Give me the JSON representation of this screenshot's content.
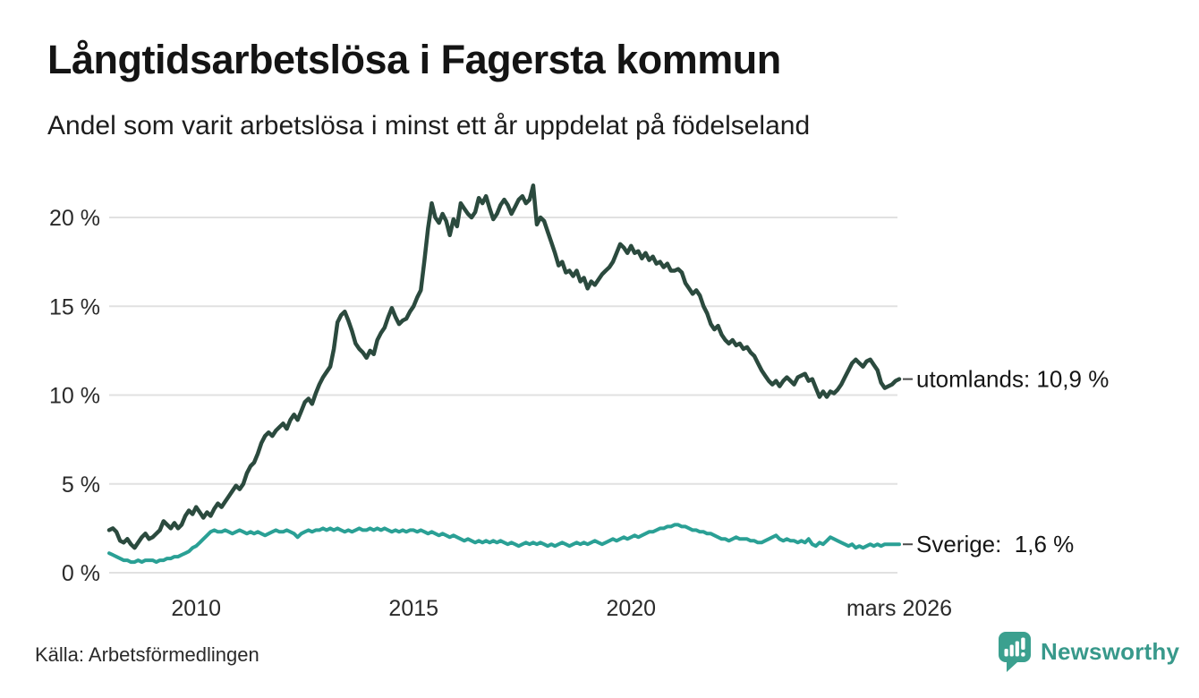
{
  "header": {
    "title": "Långtidsarbetslösa i Fagersta kommun",
    "subtitle": "Andel som varit arbetslösa i minst ett år uppdelat på födelseland"
  },
  "footer": {
    "source": "Källa: Arbetsförmedlingen",
    "brand": "Newsworthy"
  },
  "colors": {
    "utomlands_line": "#2b4a3e",
    "sverige_line": "#2aa095",
    "grid": "#e1e1e1",
    "axis_text": "#2a2a2a",
    "label_text": "#161616",
    "connector": "#4a4a4a",
    "brand_teal": "#3ba08f"
  },
  "chart_data": {
    "type": "line",
    "title": "Långtidsarbetslösa i Fagersta kommun",
    "subtitle": "Andel som varit arbetslösa i minst ett år uppdelat på födelseland",
    "unit": "%",
    "grid": true,
    "legend_position": "end-of-line-labels",
    "x_domain": [
      2008.0,
      2026.1667
    ],
    "x_start_year": 2008,
    "x_step_months": 1,
    "ylim": [
      0,
      22
    ],
    "y_ticks": [
      {
        "value": 0,
        "label": "0 %"
      },
      {
        "value": 5,
        "label": "5 %"
      },
      {
        "value": 10,
        "label": "10 %"
      },
      {
        "value": 15,
        "label": "15 %"
      },
      {
        "value": 20,
        "label": "20 %"
      }
    ],
    "x_ticks": [
      {
        "year": 2010,
        "label": "2010"
      },
      {
        "year": 2015,
        "label": "2015"
      },
      {
        "year": 2020,
        "label": "2020"
      },
      {
        "year": 2026.1667,
        "label": "mars 2026"
      }
    ],
    "series": [
      {
        "name": "utomlands",
        "end_label": "utomlands: 10,9 %",
        "last_value": 10.9,
        "color": "#2b4a3e",
        "stroke_width": 4.5,
        "values": [
          2.4,
          2.5,
          2.3,
          1.8,
          1.7,
          1.9,
          1.6,
          1.4,
          1.7,
          2.0,
          2.2,
          1.9,
          2.0,
          2.2,
          2.4,
          2.9,
          2.7,
          2.5,
          2.8,
          2.5,
          2.7,
          3.2,
          3.5,
          3.3,
          3.7,
          3.4,
          3.1,
          3.4,
          3.2,
          3.6,
          3.9,
          3.7,
          4.0,
          4.3,
          4.6,
          4.9,
          4.7,
          5.0,
          5.6,
          6.0,
          6.2,
          6.7,
          7.3,
          7.7,
          7.9,
          7.7,
          8.0,
          8.2,
          8.4,
          8.1,
          8.6,
          8.9,
          8.6,
          9.1,
          9.6,
          9.8,
          9.5,
          10.1,
          10.6,
          11.0,
          11.3,
          11.6,
          12.6,
          14.1,
          14.5,
          14.7,
          14.2,
          13.6,
          12.9,
          12.6,
          12.4,
          12.1,
          12.5,
          12.3,
          13.1,
          13.5,
          13.8,
          14.4,
          14.9,
          14.4,
          14.0,
          14.2,
          14.3,
          14.7,
          15.0,
          15.5,
          15.9,
          17.6,
          19.4,
          20.8,
          20.0,
          19.7,
          20.2,
          19.8,
          19.0,
          19.9,
          19.5,
          20.8,
          20.5,
          20.2,
          20.0,
          20.3,
          21.1,
          20.8,
          21.2,
          20.5,
          19.9,
          20.2,
          20.7,
          21.0,
          20.7,
          20.2,
          20.6,
          21.0,
          21.2,
          20.8,
          21.0,
          21.8,
          19.6,
          20.0,
          19.8,
          19.2,
          18.6,
          18.0,
          17.3,
          17.5,
          16.9,
          17.0,
          16.7,
          17.0,
          16.4,
          16.6,
          16.0,
          16.4,
          16.2,
          16.5,
          16.8,
          17.0,
          17.2,
          17.5,
          18.0,
          18.5,
          18.3,
          18.0,
          18.4,
          18.0,
          18.1,
          17.7,
          18.0,
          17.6,
          17.8,
          17.4,
          17.5,
          17.2,
          17.4,
          17.0,
          17.0,
          17.1,
          16.9,
          16.3,
          16.0,
          15.7,
          15.9,
          15.6,
          15.0,
          14.6,
          14.0,
          13.7,
          13.9,
          13.4,
          13.1,
          12.9,
          13.1,
          12.8,
          12.9,
          12.6,
          12.7,
          12.4,
          12.2,
          11.8,
          11.4,
          11.1,
          10.8,
          10.6,
          10.8,
          10.5,
          10.8,
          11.0,
          10.8,
          10.6,
          11.0,
          11.1,
          11.2,
          10.8,
          10.9,
          10.4,
          9.9,
          10.2,
          9.9,
          10.2,
          10.1,
          10.3,
          10.6,
          11.0,
          11.4,
          11.8,
          12.0,
          11.8,
          11.6,
          11.9,
          12.0,
          11.7,
          11.4,
          10.7,
          10.4,
          10.5,
          10.6,
          10.8,
          10.9
        ]
      },
      {
        "name": "Sverige",
        "end_label": "Sverige:  1,6 %",
        "last_value": 1.6,
        "color": "#2aa095",
        "stroke_width": 4,
        "values": [
          1.1,
          1.0,
          0.9,
          0.8,
          0.7,
          0.7,
          0.6,
          0.6,
          0.7,
          0.6,
          0.7,
          0.7,
          0.7,
          0.6,
          0.7,
          0.7,
          0.8,
          0.8,
          0.9,
          0.9,
          1.0,
          1.1,
          1.2,
          1.4,
          1.5,
          1.7,
          1.9,
          2.1,
          2.3,
          2.4,
          2.3,
          2.3,
          2.4,
          2.3,
          2.2,
          2.3,
          2.4,
          2.3,
          2.2,
          2.3,
          2.2,
          2.3,
          2.2,
          2.1,
          2.2,
          2.3,
          2.4,
          2.3,
          2.3,
          2.4,
          2.3,
          2.2,
          2.0,
          2.2,
          2.3,
          2.4,
          2.3,
          2.4,
          2.4,
          2.5,
          2.4,
          2.5,
          2.4,
          2.5,
          2.4,
          2.3,
          2.4,
          2.3,
          2.4,
          2.5,
          2.4,
          2.4,
          2.5,
          2.4,
          2.5,
          2.4,
          2.5,
          2.4,
          2.3,
          2.4,
          2.3,
          2.4,
          2.3,
          2.4,
          2.4,
          2.3,
          2.4,
          2.3,
          2.2,
          2.3,
          2.2,
          2.1,
          2.2,
          2.1,
          2.0,
          2.1,
          2.0,
          1.9,
          1.8,
          1.9,
          1.8,
          1.7,
          1.8,
          1.7,
          1.8,
          1.7,
          1.8,
          1.7,
          1.8,
          1.7,
          1.6,
          1.7,
          1.6,
          1.5,
          1.6,
          1.7,
          1.6,
          1.7,
          1.6,
          1.7,
          1.6,
          1.5,
          1.6,
          1.5,
          1.6,
          1.7,
          1.6,
          1.5,
          1.6,
          1.7,
          1.6,
          1.7,
          1.6,
          1.7,
          1.8,
          1.7,
          1.6,
          1.7,
          1.8,
          1.9,
          1.8,
          1.9,
          2.0,
          1.9,
          2.0,
          2.1,
          2.0,
          2.1,
          2.2,
          2.3,
          2.3,
          2.4,
          2.5,
          2.5,
          2.6,
          2.6,
          2.7,
          2.7,
          2.6,
          2.6,
          2.5,
          2.4,
          2.4,
          2.3,
          2.3,
          2.2,
          2.2,
          2.1,
          2.0,
          1.9,
          1.9,
          1.8,
          1.9,
          2.0,
          1.9,
          1.9,
          1.9,
          1.8,
          1.8,
          1.7,
          1.7,
          1.8,
          1.9,
          2.0,
          2.1,
          1.9,
          1.8,
          1.9,
          1.8,
          1.8,
          1.7,
          1.8,
          1.7,
          1.9,
          1.6,
          1.5,
          1.7,
          1.6,
          1.8,
          2.0,
          1.9,
          1.8,
          1.7,
          1.6,
          1.5,
          1.6,
          1.4,
          1.5,
          1.4,
          1.5,
          1.6,
          1.5,
          1.6,
          1.5,
          1.6,
          1.6,
          1.6,
          1.6,
          1.6
        ]
      }
    ]
  }
}
